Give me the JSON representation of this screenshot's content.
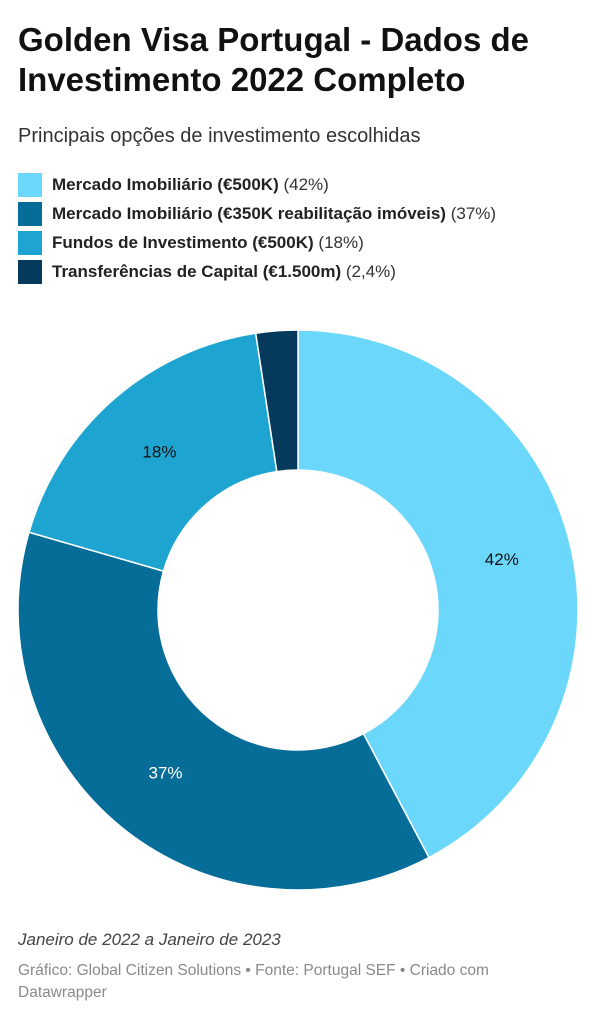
{
  "title": "Golden Visa Portugal - Dados de Investimento 2022 Completo",
  "subtitle": "Principais opções de investimento escolhidas",
  "note": "Janeiro de 2022 a Janeiro de 2023",
  "source": "Gráfico: Global Citizen Solutions • Fonte: Portugal SEF • Criado com Datawrapper",
  "legend": [
    {
      "label": "Mercado Imobiliário (€500K)",
      "pct": "(42%)",
      "color": "#6ad7fb"
    },
    {
      "label": "Mercado Imobiliário (€350K reabilitação imóveis)",
      "pct": "(37%)",
      "color": "#066d99"
    },
    {
      "label": "Fundos de Investimento (€500K)",
      "pct": "(18%)",
      "color": "#1ea4d1"
    },
    {
      "label": "Transferências de Capital (€1.500m)",
      "pct": "(2,4%)",
      "color": "#063a5c"
    }
  ],
  "chart_data": {
    "type": "pie",
    "variant": "donut",
    "categories": [
      "Mercado Imobiliário (€500K)",
      "Mercado Imobiliário (€350K reabilitação imóveis)",
      "Fundos de Investimento (€500K)",
      "Transferências de Capital (€1.500m)"
    ],
    "values": [
      42,
      37,
      18,
      2.4
    ],
    "data_labels": [
      "42%",
      "37%",
      "18%",
      ""
    ],
    "colors": [
      "#6ad7fb",
      "#066d99",
      "#1ea4d1",
      "#063a5c"
    ],
    "label_colors": [
      "#111111",
      "#ffffff",
      "#111111",
      "#ffffff"
    ],
    "start": "top, clockwise",
    "legend_position": "top"
  }
}
